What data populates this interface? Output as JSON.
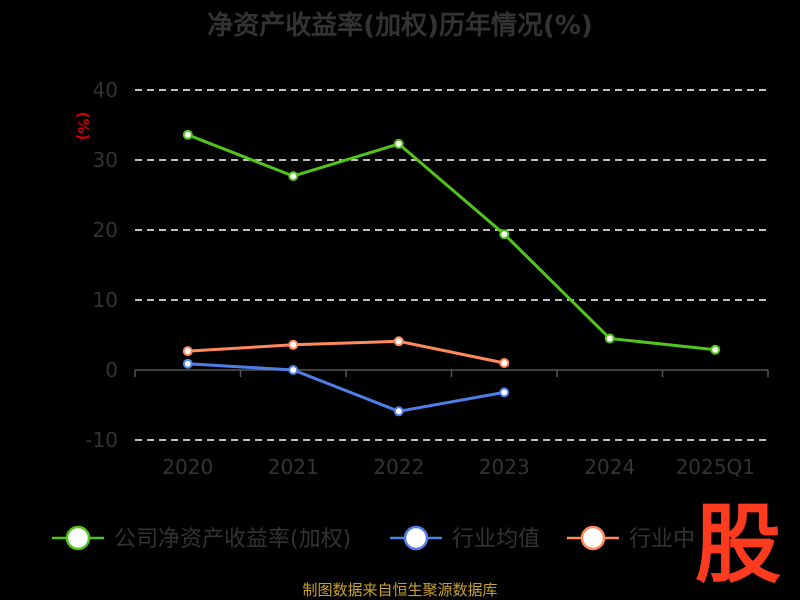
{
  "chart_data": {
    "type": "line",
    "title": "净资产收益率(加权)历年情况(%)",
    "ylabel": "(%)",
    "categories": [
      "2020",
      "2021",
      "2022",
      "2023",
      "2024",
      "2025Q1"
    ],
    "ylim": [
      -10,
      40
    ],
    "yticks": [
      40,
      30,
      20,
      10,
      0,
      -10
    ],
    "grid": true,
    "legend_position": "bottom",
    "series": [
      {
        "name": "公司净资产收益率(加权)",
        "color": "#52c41a",
        "values": [
          33.6,
          27.7,
          32.3,
          19.4,
          4.5,
          2.9
        ]
      },
      {
        "name": "行业均值",
        "color": "#4f7fe6",
        "values": [
          0.9,
          0.0,
          -5.9,
          -3.2,
          null,
          null
        ]
      },
      {
        "name": "行业中",
        "color": "#ff8a5c",
        "values": [
          2.7,
          3.6,
          4.1,
          1.0,
          null,
          null
        ]
      }
    ]
  },
  "source": "制图数据来自恒生聚源数据库",
  "stamp": "股"
}
